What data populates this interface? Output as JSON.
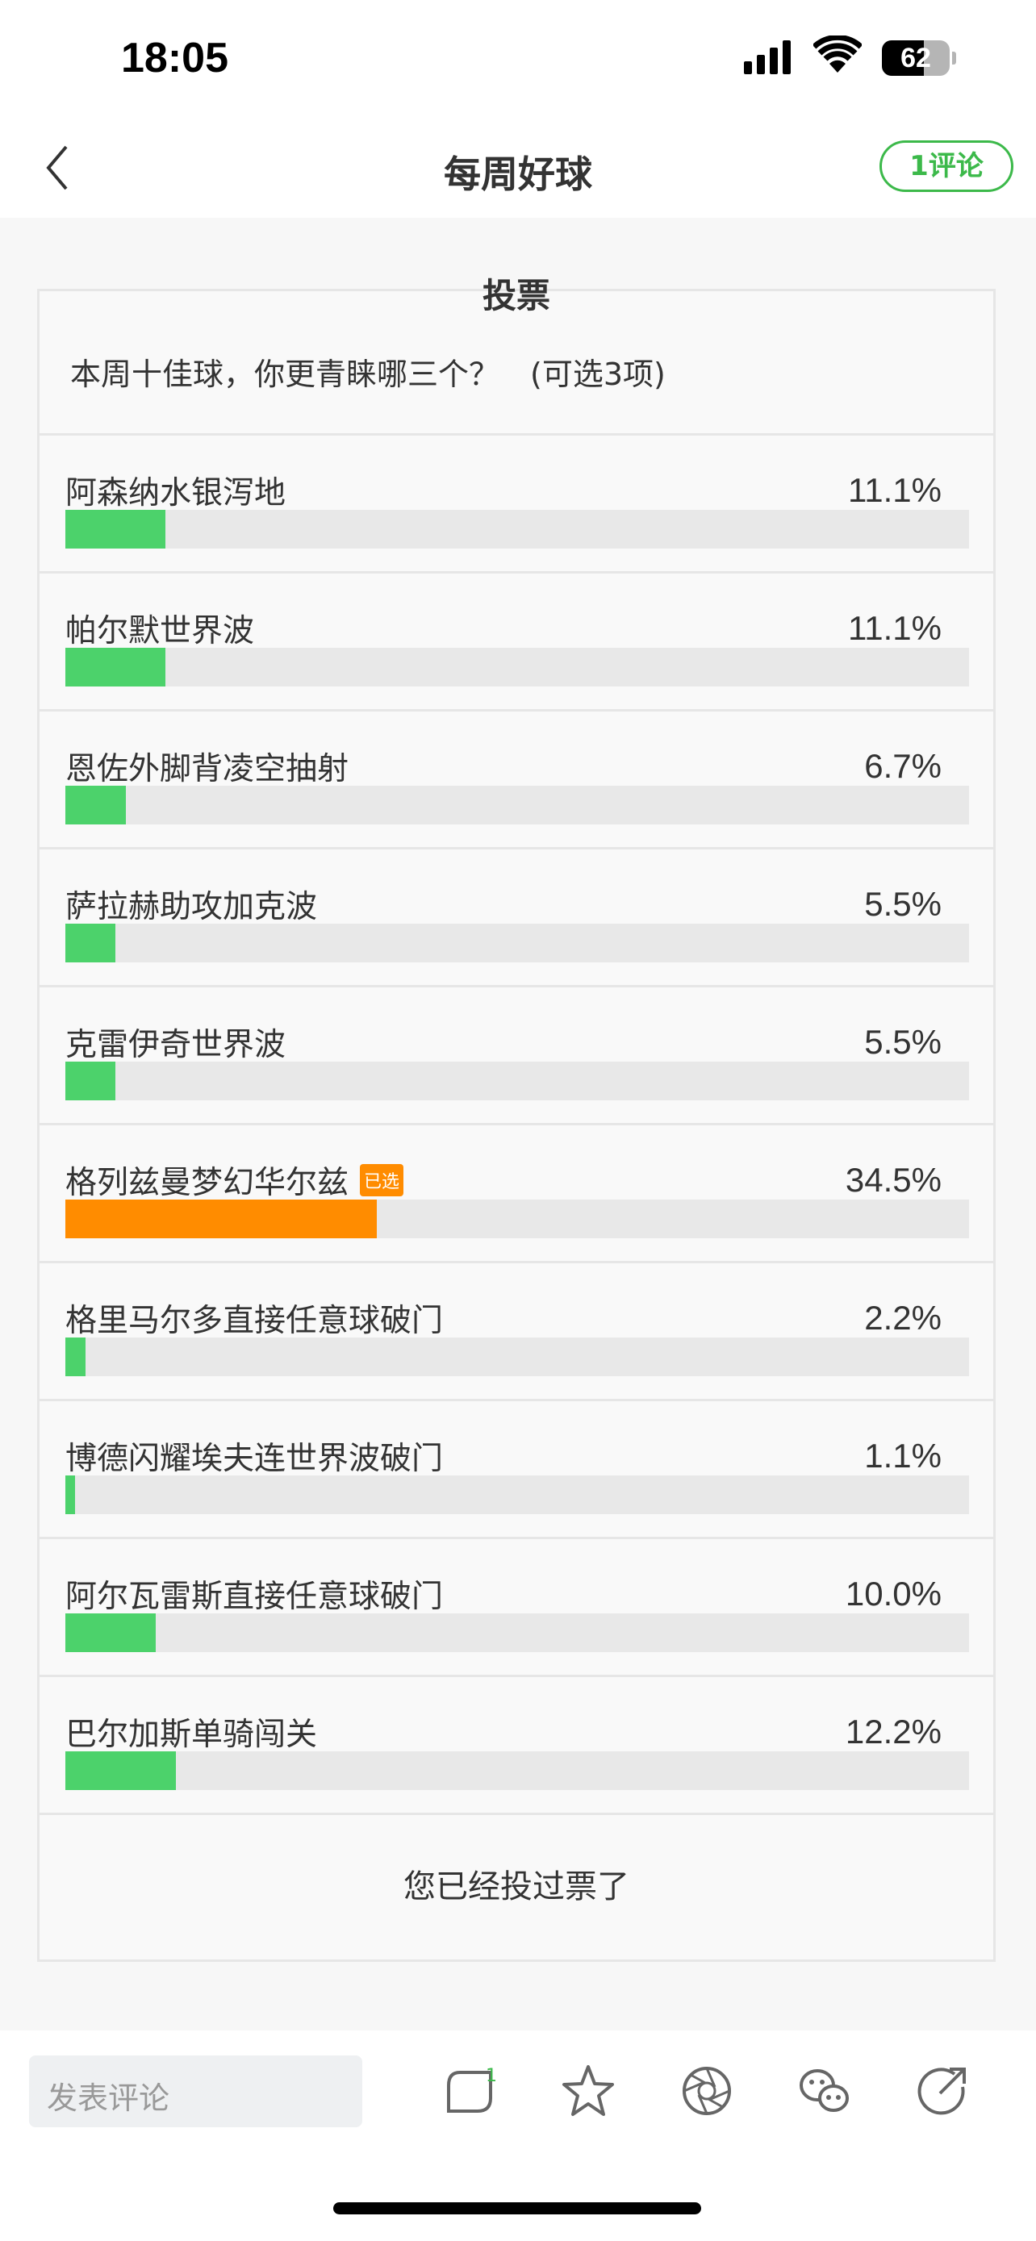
{
  "status_bar": {
    "time": "18:05",
    "battery": "62",
    "battery_level": 0.62
  },
  "nav": {
    "title": "每周好球",
    "comment_button": "1评论"
  },
  "poll": {
    "title": "投票",
    "question": "本周十佳球，你更青睐哪三个？　(可选3项)",
    "colors": {
      "bar": "#4cd26b",
      "selected": "#ff8c00",
      "track": "#e8e8e8"
    },
    "selected_badge": "已选",
    "options": [
      {
        "label": "阿森纳水银泻地",
        "percent_text": "11.1%",
        "percent": 11.1,
        "selected": false
      },
      {
        "label": "帕尔默世界波",
        "percent_text": "11.1%",
        "percent": 11.1,
        "selected": false
      },
      {
        "label": "恩佐外脚背凌空抽射",
        "percent_text": "6.7%",
        "percent": 6.7,
        "selected": false
      },
      {
        "label": "萨拉赫助攻加克波",
        "percent_text": "5.5%",
        "percent": 5.5,
        "selected": false
      },
      {
        "label": "克雷伊奇世界波",
        "percent_text": "5.5%",
        "percent": 5.5,
        "selected": false
      },
      {
        "label": "格列兹曼梦幻华尔兹",
        "percent_text": "34.5%",
        "percent": 34.5,
        "selected": true
      },
      {
        "label": "格里马尔多直接任意球破门",
        "percent_text": "2.2%",
        "percent": 2.2,
        "selected": false
      },
      {
        "label": "博德闪耀埃夫连世界波破门",
        "percent_text": "1.1%",
        "percent": 1.1,
        "selected": false
      },
      {
        "label": "阿尔瓦雷斯直接任意球破门",
        "percent_text": "10.0%",
        "percent": 10.0,
        "selected": false
      },
      {
        "label": "巴尔加斯单骑闯关",
        "percent_text": "12.2%",
        "percent": 12.2,
        "selected": false
      }
    ],
    "footer": "您已经投过票了"
  },
  "bottom_bar": {
    "comment_placeholder": "发表评论",
    "comment_count": "1",
    "icons": [
      "comment-icon",
      "star-icon",
      "moments-icon",
      "wechat-icon",
      "share-icon"
    ]
  }
}
